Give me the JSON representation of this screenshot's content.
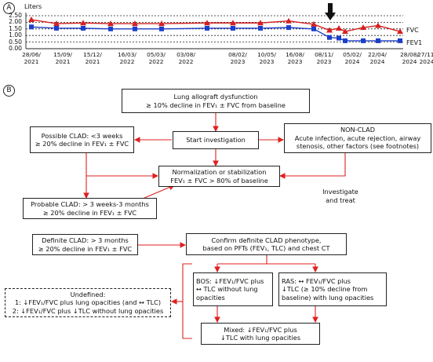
{
  "panel_a": {
    "label": "A",
    "chart_data": {
      "type": "line",
      "ylabel": "Liters",
      "ylim": [
        0,
        2.5
      ],
      "y_ticks": [
        "2.50",
        "2.00",
        "1.50",
        "1.00",
        "0.50",
        "0.00"
      ],
      "x_tick_labels": [
        {
          "d": "28/06/",
          "y": "2021"
        },
        {
          "d": "15/09/",
          "y": "2021"
        },
        {
          "d": "15/12/",
          "y": "2021"
        },
        {
          "d": "16/03/",
          "y": "2022"
        },
        {
          "d": "05/03/",
          "y": "2022"
        },
        {
          "d": "03/08/",
          "y": "2022"
        },
        {
          "d": "08/02/",
          "y": "2023"
        },
        {
          "d": "10/05/",
          "y": "2023"
        },
        {
          "d": "16/08/",
          "y": "2023"
        },
        {
          "d": "08/11/",
          "y": "2023"
        },
        {
          "d": "05/02/",
          "y": "2024"
        },
        {
          "d": "22/04/",
          "y": "2024"
        },
        {
          "d": "28/08/",
          "y": "2024"
        },
        {
          "d": "27/11/",
          "y": "2024"
        }
      ],
      "series": [
        {
          "name": "FVC",
          "color": "#d42020",
          "values": [
            2.2,
            1.9,
            1.95,
            1.9,
            1.9,
            1.9,
            1.95,
            1.95,
            1.95,
            2.1,
            1.85,
            1.4,
            1.55,
            1.3,
            1.6,
            1.75,
            1.3
          ]
        },
        {
          "name": "FEV1",
          "color": "#1c3fc9",
          "values": [
            1.65,
            1.55,
            1.55,
            1.5,
            1.5,
            1.5,
            1.55,
            1.55,
            1.55,
            1.6,
            1.5,
            0.85,
            0.8,
            0.6,
            0.6,
            0.6,
            0.6
          ]
        }
      ],
      "legend": [
        "FVC",
        "FEV1"
      ],
      "arrow_marks_date": "22/04/2024"
    }
  },
  "panel_b": {
    "label": "B",
    "top": [
      "Lung allograft dysfunction",
      "≥ 10% decline in FEV₁ ± FVC from baseline"
    ],
    "possible": [
      "Possible CLAD: <3 weeks",
      "≥ 20% decline in FEV₁ ± FVC"
    ],
    "start": "Start investigation",
    "nonclad": [
      "NON-CLAD",
      "Acute infection, acute rejection, airway",
      "stenosis, other factors (see footnotes)"
    ],
    "normalization": [
      "Normalization or stabilization",
      "FEV₁ ± FVC > 80% of baseline"
    ],
    "investigate": [
      "Investigate",
      "and treat"
    ],
    "probable": [
      "Probable CLAD: > 3 weeks-3 months",
      "≥ 20% decline in FEV₁ ± FVC"
    ],
    "definite": [
      "Definite CLAD: > 3 months",
      "≥ 20% decline in FEV₁ ± FVC"
    ],
    "confirm": [
      "Confirm definite CLAD phenotype,",
      "based on PFTs (FEV₁, TLC) and chest CT"
    ],
    "bos": [
      "BOS: ↓FEV₁/FVC plus",
      "↔ TLC without lung",
      "opacities"
    ],
    "ras": [
      "RAS: ↔   FEV₁/FVC plus",
      "↓TLC (≥ 10% decline from",
      "baseline) with lung opacities"
    ],
    "undefined": [
      "Undefined:",
      "1: ↓FEV₁/FVC plus lung opacities (and ↔ TLC)",
      "2: ↓FEV₁/FVC plus ↓TLC without lung opacities"
    ],
    "mixed": [
      "Mixed: ↓FEV₁/FVC plus",
      "↓TLC with lung opacities"
    ]
  }
}
